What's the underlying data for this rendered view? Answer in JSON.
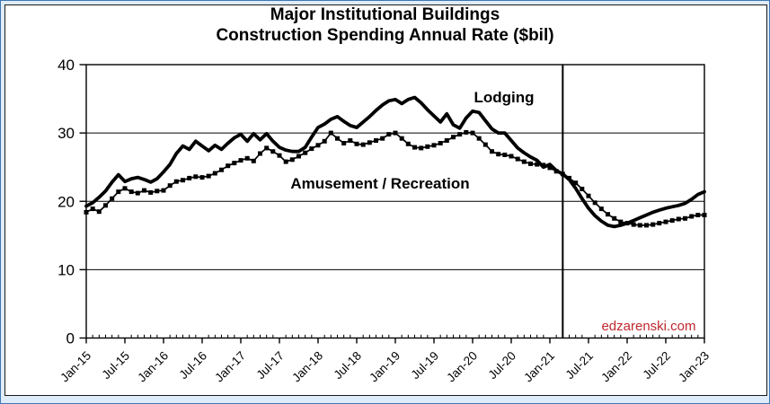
{
  "page": {
    "background": "#dfecf9",
    "border_color": "#3e78b6",
    "panel_background": "#ffffff",
    "panel_border_color": "#1b1b1b",
    "text_color": "#000000"
  },
  "chart_data": {
    "type": "line",
    "title_lines": [
      "Major Institutional Buildings",
      "Construction Spending Annual Rate ($bil)"
    ],
    "xlabel": "",
    "ylabel": "",
    "ylim": [
      0,
      40
    ],
    "y_ticks": [
      0,
      10,
      20,
      30,
      40
    ],
    "gridline_values": [
      10,
      20,
      30
    ],
    "grid": "horizontal",
    "x_start": "Jan-15",
    "x_end": "Jan-23",
    "x_interval": "monthly",
    "x_major_tick_every_months": 6,
    "x_tick_labels": [
      "Jan-15",
      "Jul-15",
      "Jan-16",
      "Jul-16",
      "Jan-17",
      "Jul-17",
      "Jan-18",
      "Jul-18",
      "Jan-19",
      "Jul-19",
      "Jan-20",
      "Jul-20",
      "Jan-21",
      "Jul-21",
      "Jan-22",
      "Jul-22",
      "Jan-23"
    ],
    "vertical_marker": {
      "month_label": "Mar-21",
      "month_index": 74
    },
    "watermark": {
      "text": "edzarenski.com",
      "color": "#c0272d"
    },
    "series": [
      {
        "name": "Lodging",
        "label": "Lodging",
        "color": "#000000",
        "marker": "none",
        "line_width": "thick",
        "values": [
          19.3,
          19.8,
          20.6,
          21.5,
          22.8,
          23.9,
          22.9,
          23.3,
          23.5,
          23.2,
          22.8,
          23.3,
          24.3,
          25.4,
          27.0,
          28.1,
          27.6,
          28.8,
          28.1,
          27.4,
          28.2,
          27.6,
          28.5,
          29.3,
          29.8,
          28.8,
          29.9,
          29.0,
          29.9,
          28.8,
          27.9,
          27.5,
          27.3,
          27.3,
          27.9,
          29.4,
          30.8,
          31.3,
          32.0,
          32.4,
          31.7,
          31.1,
          30.8,
          31.6,
          32.4,
          33.3,
          34.1,
          34.7,
          34.9,
          34.3,
          34.9,
          35.2,
          34.4,
          33.4,
          32.5,
          31.6,
          32.8,
          31.2,
          30.7,
          32.2,
          33.2,
          33.0,
          31.8,
          30.6,
          30.0,
          30.0,
          28.9,
          27.8,
          27.1,
          26.5,
          26.0,
          25.0,
          25.4,
          24.5,
          24.0,
          23.2,
          21.9,
          20.4,
          19.0,
          17.9,
          17.1,
          16.5,
          16.3,
          16.5,
          16.8,
          17.2,
          17.6,
          18.0,
          18.4,
          18.7,
          19.0,
          19.2,
          19.4,
          19.7,
          20.3,
          21.0,
          21.4
        ]
      },
      {
        "name": "Amusement / Recreation",
        "label": "Amusement / Recreation",
        "color": "#000000",
        "marker": "square",
        "line_width": "thin",
        "values": [
          18.4,
          18.9,
          18.5,
          19.4,
          20.4,
          21.4,
          21.9,
          21.4,
          21.2,
          21.6,
          21.3,
          21.5,
          21.6,
          22.3,
          22.9,
          23.1,
          23.4,
          23.6,
          23.5,
          23.7,
          24.1,
          24.6,
          25.2,
          25.6,
          26.0,
          26.3,
          25.9,
          27.0,
          27.8,
          27.3,
          26.7,
          25.8,
          26.1,
          26.6,
          27.1,
          27.7,
          28.2,
          28.8,
          30.0,
          29.2,
          28.5,
          28.9,
          28.4,
          28.3,
          28.6,
          28.9,
          29.2,
          29.8,
          30.0,
          29.2,
          28.4,
          27.9,
          27.8,
          28.0,
          28.2,
          28.5,
          28.9,
          29.4,
          29.8,
          30.1,
          30.0,
          29.2,
          28.3,
          27.3,
          26.9,
          26.8,
          26.6,
          26.2,
          25.8,
          25.5,
          25.4,
          25.3,
          24.9,
          24.4,
          24.0,
          23.4,
          22.7,
          21.8,
          20.8,
          19.8,
          18.9,
          18.1,
          17.5,
          17.0,
          16.8,
          16.6,
          16.5,
          16.5,
          16.6,
          16.8,
          17.0,
          17.2,
          17.4,
          17.5,
          17.8,
          18.0,
          18.0
        ]
      }
    ],
    "legend_position": "inline-annotations"
  }
}
